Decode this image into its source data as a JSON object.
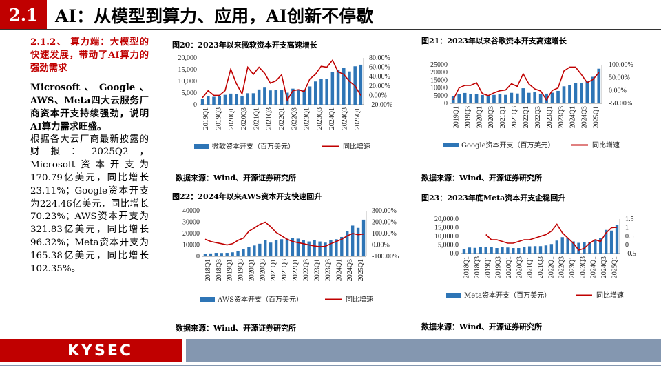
{
  "header": {
    "section": "2.1",
    "title": "AI：从模型到算力、应用，AI创新不停歇"
  },
  "left": {
    "subtitle": "2.1.2、 算力端：大模型的快速发展，带动了AI算力的强劲需求",
    "para_bold": "Microsoft 、 Google 、AWS、Meta四大云服务厂商资本开支持续强劲，说明AI算力需求旺盛。",
    "para": "根据各大云厂商最新披露的财报：2025Q2，Microsoft资本开支为170.79亿美元，同比增长23.11%；Google资本开支为224.46亿美元，同比增长70.23%；AWS资本开支为321.83亿美元，同比增长96.32%；Meta资本开支为165.38亿美元，同比增长102.35%。"
  },
  "footer": {
    "logo": "KYSEC"
  },
  "colors": {
    "red": "#c00000",
    "bar": "#2e75b6",
    "line": "#c00000",
    "footer_gray": "#8497b0"
  },
  "chart_data": [
    {
      "type": "bar",
      "title": "图20：2023年以来微软资本开支高速增长",
      "source": "数据来源：Wind、开源证券研究所",
      "legend": [
        "微软资本开支（百万美元）",
        "同比增速"
      ],
      "x_labels": [
        "2019Q1",
        "2019Q3",
        "2020Q1",
        "2020Q3",
        "2021Q1",
        "2021Q3",
        "2022Q1",
        "2022Q3",
        "2023Q1",
        "2023Q3",
        "2024Q1",
        "2024Q3",
        "2025Q1"
      ],
      "y_ticks": [
        "20,000",
        "15,000",
        "10,000",
        "5,000",
        "0"
      ],
      "y2_ticks": [
        "80.00%",
        "60.00%",
        "40.00%",
        "20.00%",
        "0.00%",
        "-20.00%"
      ],
      "ylim": [
        0,
        20000
      ],
      "y2lim": [
        -20,
        80
      ],
      "series": [
        {
          "name": "微软资本开支（百万美元）",
          "kind": "bar",
          "values": [
            2565,
            3600,
            3385,
            3545,
            4230,
            4740,
            4705,
            3840,
            4890,
            4900,
            6520,
            7300,
            6120,
            6285,
            6410,
            5140,
            6855,
            6605,
            6274,
            7800,
            9920,
            10950,
            11000,
            14000,
            14900,
            15800,
            14200,
            16400,
            17080
          ]
        },
        {
          "name": "同比增速",
          "kind": "line",
          "values": [
            -5,
            10,
            0,
            0,
            10,
            56,
            25,
            3,
            60,
            45,
            60,
            47,
            26,
            31,
            44,
            -10,
            10,
            12,
            8,
            35,
            45,
            62,
            60,
            75,
            50,
            45,
            30,
            20,
            0
          ]
        }
      ]
    },
    {
      "type": "bar",
      "title": "图21：2023年以来谷歌资本开支高速增长",
      "source": "数据来源：Wind、开源证券研究所",
      "legend": [
        "Google资本开支（百万美元）",
        "同比增速"
      ],
      "x_labels": [
        "2019Q1",
        "2019Q3",
        "2020Q1",
        "2020Q3",
        "2021Q1",
        "2021Q3",
        "2022Q1",
        "2022Q3",
        "2023Q1",
        "2023Q3",
        "2024Q1",
        "2024Q3",
        "2025Q1"
      ],
      "y_ticks": [
        "25000",
        "20000",
        "15000",
        "10000",
        "5000",
        "0"
      ],
      "y2_ticks": [
        "100.00%",
        "50.00%",
        "0.00%",
        "-50.00%"
      ],
      "ylim": [
        0,
        25000
      ],
      "y2lim": [
        -50,
        100
      ],
      "series": [
        {
          "name": "Google资本开支（百万美元）",
          "kind": "bar",
          "values": [
            4638,
            6126,
            6732,
            6052,
            6005,
            5391,
            5406,
            5479,
            5942,
            5496,
            6819,
            6383,
            9786,
            6828,
            7276,
            6259,
            6289,
            6888,
            8055,
            11019,
            12012,
            13186,
            13061,
            14276,
            17197,
            22446
          ]
        },
        {
          "name": "同比增速",
          "kind": "line",
          "values": [
            -36,
            10,
            20,
            20,
            30,
            -12,
            -20,
            -9,
            -1,
            2,
            26,
            16,
            65,
            25,
            6,
            -2,
            -36,
            0,
            10,
            76,
            91,
            91,
            62,
            30,
            43,
            70
          ]
        }
      ]
    },
    {
      "type": "bar",
      "title": "图22：2024年以来AWS资本开支快速回升",
      "source": "数据来源：Wind、开源证券研究所",
      "legend": [
        "AWS资本开支（百万美元）",
        "同比增速"
      ],
      "x_labels": [
        "2018Q1",
        "2018Q3",
        "2019Q1",
        "2019Q3",
        "2020Q1",
        "2020Q3",
        "2021Q1",
        "2021Q3",
        "2022Q1",
        "2022Q3",
        "2023Q1",
        "2023Q3",
        "2024Q1",
        "2024Q3",
        "2025Q1"
      ],
      "y_ticks": [
        "40000",
        "30000",
        "20000",
        "10000",
        "0"
      ],
      "y2_ticks": [
        "300.00%",
        "200.00%",
        "100.00%",
        "0.00%",
        "-100.00%"
      ],
      "ylim": [
        0,
        40000
      ],
      "y2lim": [
        -100,
        300
      ],
      "series": [
        {
          "name": "AWS资本开支（百万美元）",
          "kind": "bar",
          "values": [
            2200,
            2500,
            3000,
            2900,
            3000,
            3500,
            4500,
            6500,
            8000,
            9500,
            11000,
            14000,
            12000,
            14000,
            15000,
            15500,
            16000,
            15500,
            14000,
            13000,
            14000,
            13000,
            12000,
            14000,
            15000,
            17000,
            22000,
            27000,
            25000,
            32183
          ]
        },
        {
          "name": "同比增速",
          "kind": "line",
          "values": [
            50,
            30,
            20,
            10,
            0,
            10,
            40,
            60,
            120,
            150,
            180,
            200,
            160,
            110,
            80,
            50,
            30,
            20,
            10,
            0,
            -10,
            -15,
            -12,
            10,
            30,
            50,
            80,
            100,
            90,
            96
          ]
        }
      ]
    },
    {
      "type": "bar",
      "title": "图23：2023年底Meta资本开支企稳回升",
      "source": "数据来源：Wind、开源证券研究所",
      "legend": [
        "Meta资本开支（百万美元）",
        "同比增速"
      ],
      "x_labels": [
        "2018Q1",
        "2018Q3",
        "2019Q1",
        "2019Q3",
        "2020Q1",
        "2020Q3",
        "2021Q1",
        "2021Q3",
        "2022Q1",
        "2022Q3",
        "2023Q1",
        "2023Q3",
        "2024Q1",
        "2024Q3",
        "2025Q1"
      ],
      "y_ticks": [
        "20,000.0",
        "15,000.0",
        "10,000.0",
        "5,000.0",
        "0.0"
      ],
      "y2_ticks": [
        "1.5",
        "1",
        "0.5",
        "0",
        "-0.5"
      ],
      "ylim": [
        0,
        20000
      ],
      "y2lim": [
        -0.5,
        1.5
      ],
      "series": [
        {
          "name": "Meta资本开支（百万美元）",
          "kind": "bar",
          "values": [
            2800,
            3500,
            3300,
            3700,
            4000,
            3600,
            3200,
            3700,
            3500,
            3200,
            3200,
            3700,
            4200,
            4300,
            4300,
            4700,
            5500,
            7500,
            9500,
            9000,
            7000,
            6200,
            6500,
            6600,
            8200,
            9000,
            13700,
            13300,
            16538
          ]
        },
        {
          "name": "同比增速",
          "kind": "line",
          "values": [
            null,
            null,
            null,
            null,
            0.6,
            0.3,
            0.3,
            0.2,
            0.1,
            0.1,
            0.2,
            0.3,
            0.3,
            0.4,
            0.5,
            0.6,
            0.8,
            1.2,
            0.7,
            0.4,
            0.1,
            -0.3,
            -0.2,
            0.1,
            0.3,
            0.2,
            0.7,
            1.0,
            1.02
          ]
        }
      ]
    }
  ]
}
